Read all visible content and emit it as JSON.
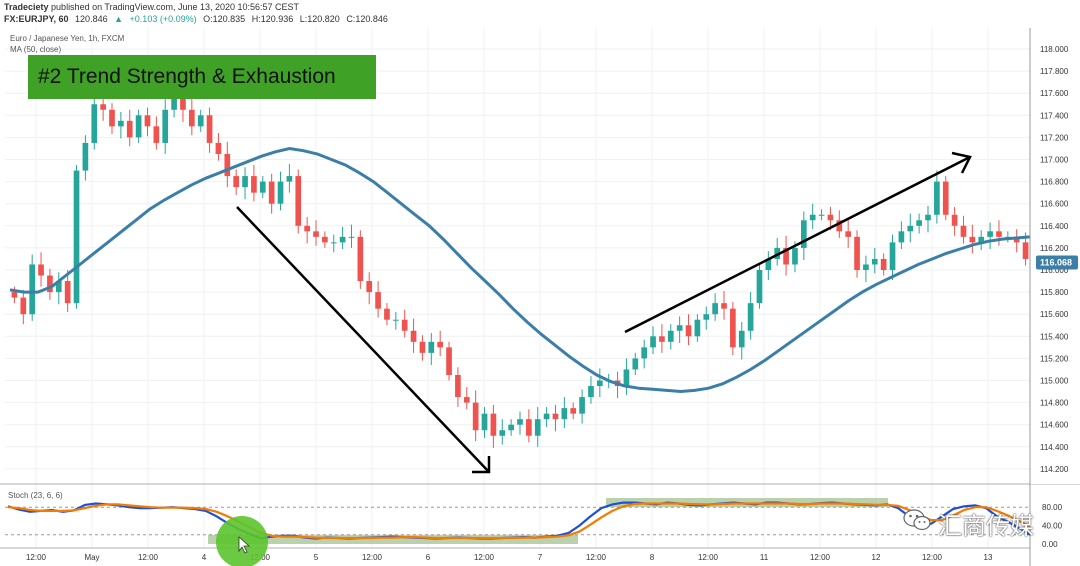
{
  "header": {
    "publisher": "Tradeciety",
    "published_text": "published on TradingView.com, June 13, 2020 10:56:57 CEST",
    "symbol": "FX:EURJPY, 60",
    "last": "120.846",
    "change": "+0.103 (+0.09%)",
    "open": "O:120.835",
    "high": "H:120.936",
    "low": "L:120.820",
    "close": "C:120.846"
  },
  "chart_title": "Euro / Japanese Yen, 1h, FXCM",
  "ma_label": "MA (50, close)",
  "banner_text": "#2 Trend Strength  & Exhaustion",
  "stoch_label": "Stoch (23, 6, 6)",
  "watermark_text": "汇商传媒",
  "colors": {
    "up": "#26a69a",
    "down": "#ef5350",
    "ma": "#3b7ea8",
    "k_line": "#1e4fd8",
    "d_line": "#f57c00",
    "banner": "#3fa125",
    "highlight": "#a9c59a",
    "last_price_bg": "#3b7ea8"
  },
  "chart_data": [
    {
      "type": "candlestick",
      "title": "Euro / Japanese Yen, 1h, FXCM",
      "ylim": [
        114.1,
        118.1
      ],
      "y_ticks": [
        "118.000",
        "117.800",
        "117.600",
        "117.400",
        "117.200",
        "117.000",
        "116.800",
        "116.600",
        "116.400",
        "116.200",
        "116.000",
        "115.800",
        "115.600",
        "115.400",
        "115.200",
        "115.000",
        "114.800",
        "114.600",
        "114.400",
        "114.200"
      ],
      "last_price_label": "116.068",
      "last_price": 116.068,
      "x_ticks": [
        "12:00",
        "May",
        "12:00",
        "4",
        "12:00",
        "5",
        "12:00",
        "6",
        "12:00",
        "7",
        "12:00",
        "8",
        "12:00",
        "11",
        "12:00",
        "12",
        "12:00",
        "13"
      ],
      "candle_count": 115,
      "closes": [
        115.75,
        115.6,
        116.05,
        115.95,
        115.8,
        115.9,
        115.7,
        116.9,
        117.15,
        117.5,
        117.45,
        117.3,
        117.35,
        117.2,
        117.4,
        117.3,
        117.15,
        117.45,
        117.55,
        117.45,
        117.3,
        117.4,
        117.15,
        117.05,
        116.85,
        116.75,
        116.85,
        116.7,
        116.8,
        116.6,
        116.8,
        116.85,
        116.4,
        116.35,
        116.3,
        116.25,
        116.25,
        116.3,
        116.3,
        115.9,
        115.8,
        115.65,
        115.55,
        115.55,
        115.45,
        115.35,
        115.25,
        115.35,
        115.3,
        115.05,
        114.85,
        114.8,
        114.55,
        114.7,
        114.5,
        114.55,
        114.6,
        114.65,
        114.5,
        114.65,
        114.7,
        114.65,
        114.75,
        114.7,
        114.85,
        114.95,
        115.0,
        115.0,
        114.95,
        115.1,
        115.2,
        115.3,
        115.4,
        115.35,
        115.45,
        115.5,
        115.4,
        115.55,
        115.6,
        115.7,
        115.65,
        115.3,
        115.45,
        115.7,
        116.0,
        116.1,
        116.2,
        116.05,
        116.2,
        116.45,
        116.5,
        116.5,
        116.45,
        116.35,
        116.3,
        116.0,
        116.05,
        116.1,
        116.0,
        116.25,
        116.35,
        116.4,
        116.45,
        116.5,
        116.8,
        116.5,
        116.4,
        116.3,
        116.25,
        116.3,
        116.35,
        116.3,
        116.3,
        116.25,
        116.1
      ],
      "ma_series": {
        "name": "MA (50, close)",
        "values": [
          115.82,
          115.8,
          115.8,
          115.85,
          115.95,
          116.05,
          116.15,
          116.25,
          116.35,
          116.45,
          116.55,
          116.63,
          116.7,
          116.77,
          116.83,
          116.88,
          116.93,
          116.98,
          117.03,
          117.07,
          117.1,
          117.08,
          117.05,
          117.0,
          116.95,
          116.88,
          116.8,
          116.7,
          116.6,
          116.5,
          116.4,
          116.28,
          116.15,
          116.02,
          115.9,
          115.78,
          115.65,
          115.53,
          115.42,
          115.32,
          115.22,
          115.13,
          115.05,
          114.99,
          114.95,
          114.93,
          114.92,
          114.91,
          114.9,
          114.91,
          114.93,
          114.97,
          115.03,
          115.1,
          115.18,
          115.27,
          115.36,
          115.45,
          115.54,
          115.63,
          115.72,
          115.8,
          115.87,
          115.93,
          115.99,
          116.05,
          116.1,
          116.15,
          116.19,
          116.23,
          116.26,
          116.28,
          116.29,
          116.3
        ]
      }
    },
    {
      "type": "line",
      "title": "Stoch (23, 6, 6)",
      "ylim": [
        0,
        100
      ],
      "y_ticks": [
        "80.00",
        "40.00",
        "0.00"
      ],
      "series": [
        {
          "name": "K",
          "values": [
            82,
            75,
            70,
            72,
            74,
            70,
            73,
            85,
            88,
            86,
            84,
            80,
            78,
            78,
            79,
            80,
            78,
            76,
            72,
            60,
            45,
            32,
            22,
            12,
            16,
            18,
            18,
            14,
            12,
            14,
            13,
            12,
            13,
            14,
            15,
            16,
            15,
            14,
            13,
            12,
            13,
            14,
            13,
            12,
            12,
            13,
            14,
            15,
            14,
            16,
            18,
            24,
            40,
            60,
            78,
            86,
            90,
            90,
            88,
            86,
            90,
            88,
            85,
            84,
            86,
            88,
            90,
            88,
            86,
            90,
            90,
            88,
            86,
            87,
            89,
            90,
            88,
            86,
            85,
            84,
            86,
            78,
            60,
            45,
            44,
            60,
            76,
            82,
            84,
            78,
            60,
            48,
            35,
            20
          ]
        },
        {
          "name": "D",
          "values": [
            80,
            78,
            74,
            72,
            72,
            72,
            73,
            78,
            83,
            86,
            86,
            84,
            82,
            80,
            79,
            79,
            79,
            78,
            76,
            70,
            60,
            48,
            36,
            24,
            18,
            16,
            16,
            15,
            14,
            13,
            13,
            13,
            13,
            13,
            14,
            14,
            15,
            15,
            14,
            13,
            13,
            13,
            13,
            13,
            13,
            13,
            13,
            14,
            14,
            15,
            16,
            19,
            27,
            42,
            58,
            72,
            82,
            87,
            88,
            88,
            88,
            88,
            87,
            86,
            86,
            87,
            88,
            88,
            88,
            88,
            88,
            88,
            87,
            87,
            88,
            88,
            88,
            87,
            86,
            85,
            85,
            83,
            74,
            62,
            52,
            52,
            62,
            74,
            80,
            80,
            72,
            62,
            50,
            38
          ]
        }
      ]
    }
  ]
}
